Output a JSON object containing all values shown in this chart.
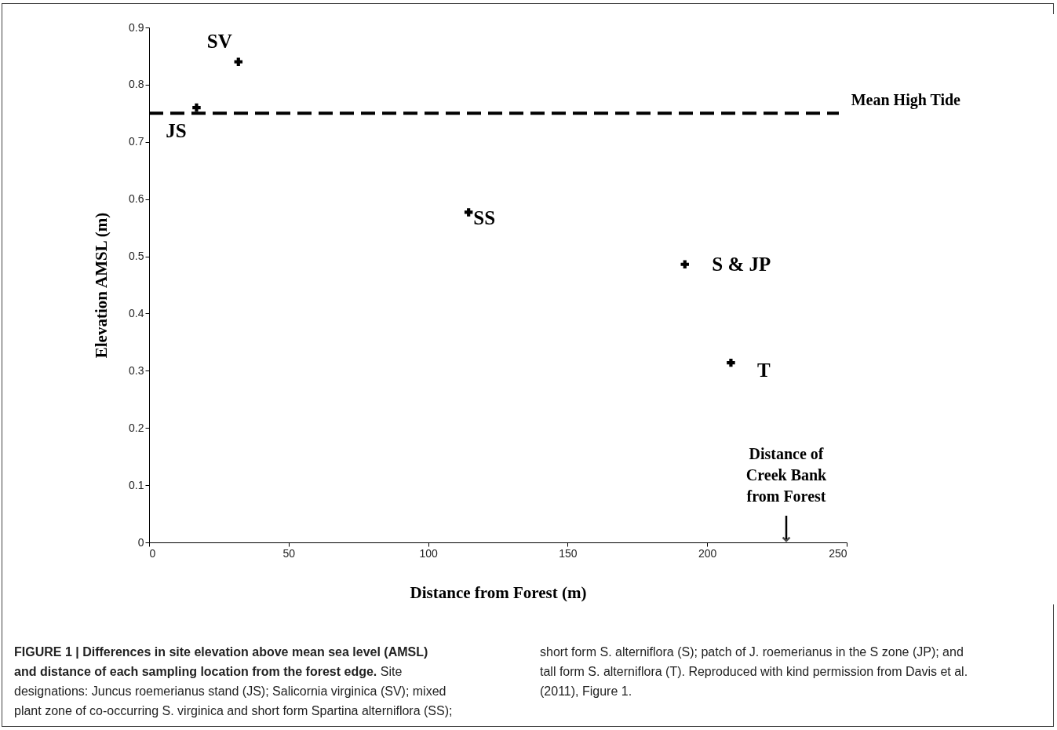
{
  "chart_data": {
    "type": "scatter",
    "title": "FIGURE 1 | Differences in site elevation above mean sea level (AMSL) and distance of each sampling location from the forest edge.",
    "xlabel": "Distance from Forest (m)",
    "ylabel": "Elevation AMSL (m)",
    "x": [
      17,
      32,
      114.5,
      192,
      208.5
    ],
    "values": [
      0.76,
      0.84,
      0.577,
      0.486,
      0.314
    ],
    "color": "#000000",
    "marker": "cross",
    "xlim": [
      0,
      250
    ],
    "xticks": [
      0,
      50,
      100,
      150,
      200,
      250
    ],
    "ylim": [
      0,
      0.9
    ],
    "yticks": [
      0,
      0.1,
      0.2,
      0.3,
      0.4,
      0.5,
      0.6,
      0.7,
      0.8,
      0.9
    ],
    "grid": false,
    "ref_lines": [
      {
        "axis": "y",
        "value": 0.75,
        "label": "Mean High Tide",
        "color": "#000000",
        "line_style": "dashed"
      }
    ],
    "annotations": [
      {
        "text": "JS",
        "x": 17,
        "y": 0.76
      },
      {
        "text": "SV",
        "x": 32,
        "y": 0.84
      },
      {
        "text": "SS",
        "x": 114.5,
        "y": 0.577
      },
      {
        "text": "S & JP",
        "x": 192,
        "y": 0.486
      },
      {
        "text": "T",
        "x": 208.5,
        "y": 0.314
      },
      "Distance of Creek Bank from Forest",
      "Site designations: Juncus roemerianus stand (JS); Salicornia virginica (SV); mixed plant zone of co-occurring S. virginica and short form Spartina alterniflora (SS); short form S. alterniflora (S); patch of J. roemerianus in the S zone (JP); and tall form S. alterniflora (T). Reproduced with kind permission from Davis et al. (2011), Figure 1."
    ]
  }
}
